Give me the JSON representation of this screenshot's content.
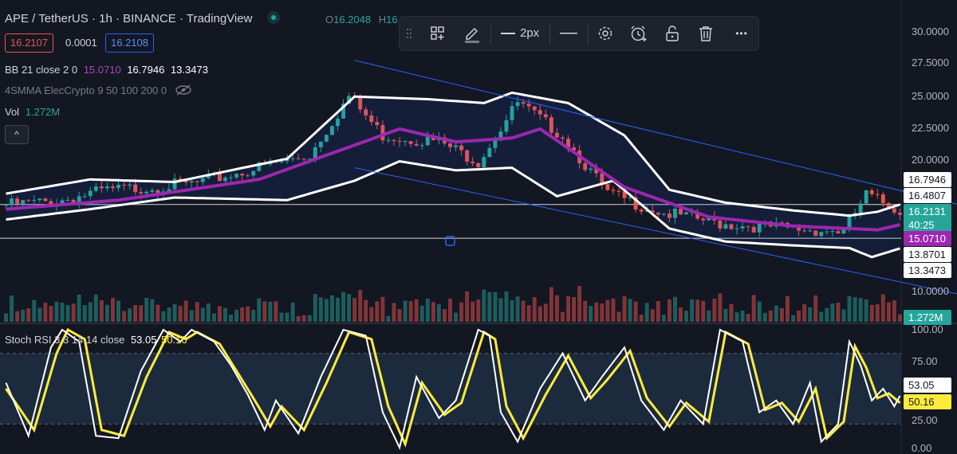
{
  "header": {
    "title": "APE / TetherUS · 1h · BINANCE · TradingView",
    "ohlc_open_label": "O",
    "ohlc_open_value": "16.2048",
    "ohlc_high_label": "H",
    "ohlc_high_value": "16"
  },
  "order": {
    "sell": "16.2107",
    "spread": "0.0001",
    "buy": "16.2108"
  },
  "legends": {
    "bb_name": "BB 21 close 2 0",
    "bb_basis": "15.0710",
    "bb_upper": "16.7946",
    "bb_lower": "13.3473",
    "ma_name": "4SMMA ElecCrypto 9 50 100 200 0",
    "vol_name": "Vol",
    "vol_value": "1.272M",
    "rsi_name": "Stoch RSI 3 3 14 14 close",
    "rsi_k": "53.05",
    "rsi_d": "50.16",
    "collapse_glyph": "^"
  },
  "toolbar": {
    "width_label": "2px",
    "more_glyph": "•••"
  },
  "colors": {
    "background": "#131722",
    "up": "#26a69a",
    "down": "#ef5350",
    "bb_basis": "#9c27b0",
    "bb_band": "#ffffff",
    "channel": "#2962ff",
    "stoch_k": "#ffffff",
    "stoch_d": "#ffeb3b"
  },
  "price_axis": {
    "ticks": [
      "30.0000",
      "27.5000",
      "25.0000",
      "22.5000",
      "20.0000",
      "10.0000"
    ],
    "tags": {
      "upper": "16.7946",
      "hline": "16.4807",
      "last": "16.2131",
      "countdown": "40:25",
      "basis": "15.0710",
      "hline2": "13.8701",
      "lower": "13.3473",
      "volume": "1.272M"
    }
  },
  "rsi_axis": {
    "ticks": [
      "100.00",
      "75.00",
      "25.00",
      "0.00"
    ],
    "k": "53.05",
    "d": "50.16"
  },
  "chart_data": [
    {
      "type": "line",
      "title": "APE / TetherUS · 1h · BINANCE",
      "ylim": [
        10,
        30
      ],
      "bars_count": 160,
      "price_path": [
        [
          0,
          16.6
        ],
        [
          10,
          16.9
        ],
        [
          18,
          17.7
        ],
        [
          35,
          18.3
        ],
        [
          55,
          20.5
        ],
        [
          62,
          25.0
        ],
        [
          68,
          22.0
        ],
        [
          78,
          21.5
        ],
        [
          85,
          20.0
        ],
        [
          92,
          24.5
        ],
        [
          100,
          22.0
        ],
        [
          108,
          17.5
        ],
        [
          118,
          16.0
        ],
        [
          128,
          15.2
        ],
        [
          140,
          14.8
        ],
        [
          150,
          14.6
        ],
        [
          154,
          17.4
        ],
        [
          160,
          16.2
        ]
      ],
      "series": [
        {
          "name": "BB basis",
          "values": [
            [
              0,
              16.3
            ],
            [
              20,
              17.0
            ],
            [
              45,
              18.6
            ],
            [
              70,
              22.5
            ],
            [
              80,
              21.5
            ],
            [
              90,
              21.8
            ],
            [
              95,
              22.5
            ],
            [
              110,
              18.0
            ],
            [
              125,
              15.7
            ],
            [
              140,
              15.0
            ],
            [
              155,
              14.7
            ],
            [
              160,
              15.2
            ]
          ]
        },
        {
          "name": "BB upper",
          "values": [
            [
              0,
              17.5
            ],
            [
              15,
              18.6
            ],
            [
              30,
              18.4
            ],
            [
              50,
              20.2
            ],
            [
              62,
              25.0
            ],
            [
              75,
              24.8
            ],
            [
              85,
              24.5
            ],
            [
              90,
              25.3
            ],
            [
              100,
              24.5
            ],
            [
              110,
              22.0
            ],
            [
              118,
              17.8
            ],
            [
              128,
              16.8
            ],
            [
              140,
              16.2
            ],
            [
              150,
              15.8
            ],
            [
              155,
              16.1
            ],
            [
              160,
              16.8
            ]
          ]
        },
        {
          "name": "BB lower",
          "values": [
            [
              0,
              15.5
            ],
            [
              15,
              16.3
            ],
            [
              30,
              17.2
            ],
            [
              50,
              17.0
            ],
            [
              62,
              18.5
            ],
            [
              70,
              20.0
            ],
            [
              80,
              19.3
            ],
            [
              90,
              19.5
            ],
            [
              98,
              17.3
            ],
            [
              108,
              18.5
            ],
            [
              118,
              14.8
            ],
            [
              128,
              13.8
            ],
            [
              140,
              13.5
            ],
            [
              150,
              13.3
            ],
            [
              154,
              12.6
            ],
            [
              160,
              13.4
            ]
          ]
        }
      ],
      "hlines": [
        16.4807,
        13.8701
      ],
      "channel": [
        [
          [
            62,
            27.8
          ],
          [
            172,
            16.4
          ]
        ],
        [
          [
            62,
            19.5
          ],
          [
            172,
            9.5
          ]
        ]
      ]
    },
    {
      "type": "line",
      "title": "Stoch RSI 3 3 14 14 close",
      "ylim": [
        0,
        100
      ],
      "bands": [
        20,
        80
      ],
      "k_path": [
        [
          0,
          55
        ],
        [
          4,
          10
        ],
        [
          8,
          85
        ],
        [
          10,
          100
        ],
        [
          13,
          90
        ],
        [
          16,
          10
        ],
        [
          20,
          8
        ],
        [
          24,
          65
        ],
        [
          28,
          100
        ],
        [
          31,
          90
        ],
        [
          33,
          100
        ],
        [
          37,
          90
        ],
        [
          40,
          70
        ],
        [
          43,
          45
        ],
        [
          46,
          15
        ],
        [
          48,
          40
        ],
        [
          52,
          12
        ],
        [
          56,
          60
        ],
        [
          60,
          100
        ],
        [
          64,
          95
        ],
        [
          67,
          30
        ],
        [
          70,
          0
        ],
        [
          73,
          60
        ],
        [
          77,
          25
        ],
        [
          80,
          40
        ],
        [
          84,
          100
        ],
        [
          86,
          95
        ],
        [
          88,
          30
        ],
        [
          91,
          5
        ],
        [
          95,
          50
        ],
        [
          99,
          80
        ],
        [
          103,
          40
        ],
        [
          106,
          60
        ],
        [
          110,
          85
        ],
        [
          113,
          40
        ],
        [
          117,
          15
        ],
        [
          120,
          40
        ],
        [
          124,
          20
        ],
        [
          127,
          100
        ],
        [
          131,
          90
        ],
        [
          134,
          30
        ],
        [
          137,
          40
        ],
        [
          140,
          20
        ],
        [
          143,
          55
        ],
        [
          145,
          5
        ],
        [
          148,
          20
        ],
        [
          150,
          90
        ],
        [
          152,
          70
        ],
        [
          154,
          40
        ],
        [
          156,
          50
        ],
        [
          158,
          35
        ],
        [
          160,
          53
        ]
      ],
      "d_path": [
        [
          0,
          50
        ],
        [
          5,
          15
        ],
        [
          9,
          80
        ],
        [
          11,
          100
        ],
        [
          14,
          92
        ],
        [
          17,
          15
        ],
        [
          21,
          10
        ],
        [
          25,
          60
        ],
        [
          29,
          98
        ],
        [
          32,
          92
        ],
        [
          34,
          98
        ],
        [
          38,
          88
        ],
        [
          41,
          65
        ],
        [
          44,
          42
        ],
        [
          47,
          18
        ],
        [
          49,
          35
        ],
        [
          53,
          15
        ],
        [
          57,
          55
        ],
        [
          61,
          98
        ],
        [
          65,
          92
        ],
        [
          68,
          35
        ],
        [
          71,
          3
        ],
        [
          74,
          55
        ],
        [
          78,
          28
        ],
        [
          81,
          38
        ],
        [
          85,
          98
        ],
        [
          87,
          92
        ],
        [
          89,
          35
        ],
        [
          92,
          8
        ],
        [
          96,
          45
        ],
        [
          100,
          78
        ],
        [
          104,
          42
        ],
        [
          107,
          58
        ],
        [
          111,
          82
        ],
        [
          114,
          42
        ],
        [
          118,
          18
        ],
        [
          121,
          38
        ],
        [
          125,
          22
        ],
        [
          128,
          98
        ],
        [
          132,
          88
        ],
        [
          135,
          32
        ],
        [
          138,
          38
        ],
        [
          141,
          22
        ],
        [
          144,
          50
        ],
        [
          146,
          8
        ],
        [
          149,
          22
        ],
        [
          151,
          86
        ],
        [
          153,
          68
        ],
        [
          155,
          42
        ],
        [
          157,
          46
        ],
        [
          159,
          38
        ],
        [
          160,
          50
        ]
      ]
    }
  ]
}
